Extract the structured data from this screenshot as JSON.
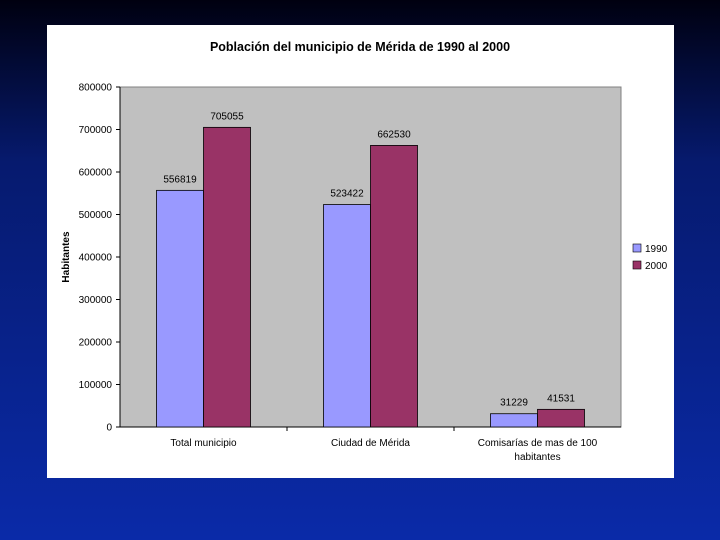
{
  "chart_data": {
    "type": "bar",
    "title": "Población del municipio de Mérida de 1990 al 2000",
    "xlabel": "",
    "ylabel": "Habitantes",
    "ylim": [
      0,
      800000
    ],
    "yticks": [
      0,
      100000,
      200000,
      300000,
      400000,
      500000,
      600000,
      700000,
      800000
    ],
    "grid": false,
    "legend_position": "right",
    "categories": [
      [
        "Total municipio"
      ],
      [
        "Ciudad de Mérida"
      ],
      [
        "Comisarías de mas de 100",
        "habitantes"
      ]
    ],
    "series": [
      {
        "name": "1990",
        "color": "#9999ff",
        "values": [
          556819,
          523422,
          31229
        ]
      },
      {
        "name": "2000",
        "color": "#993366",
        "values": [
          705055,
          662530,
          41531
        ]
      }
    ],
    "plot_background": "#c0c0c0"
  }
}
